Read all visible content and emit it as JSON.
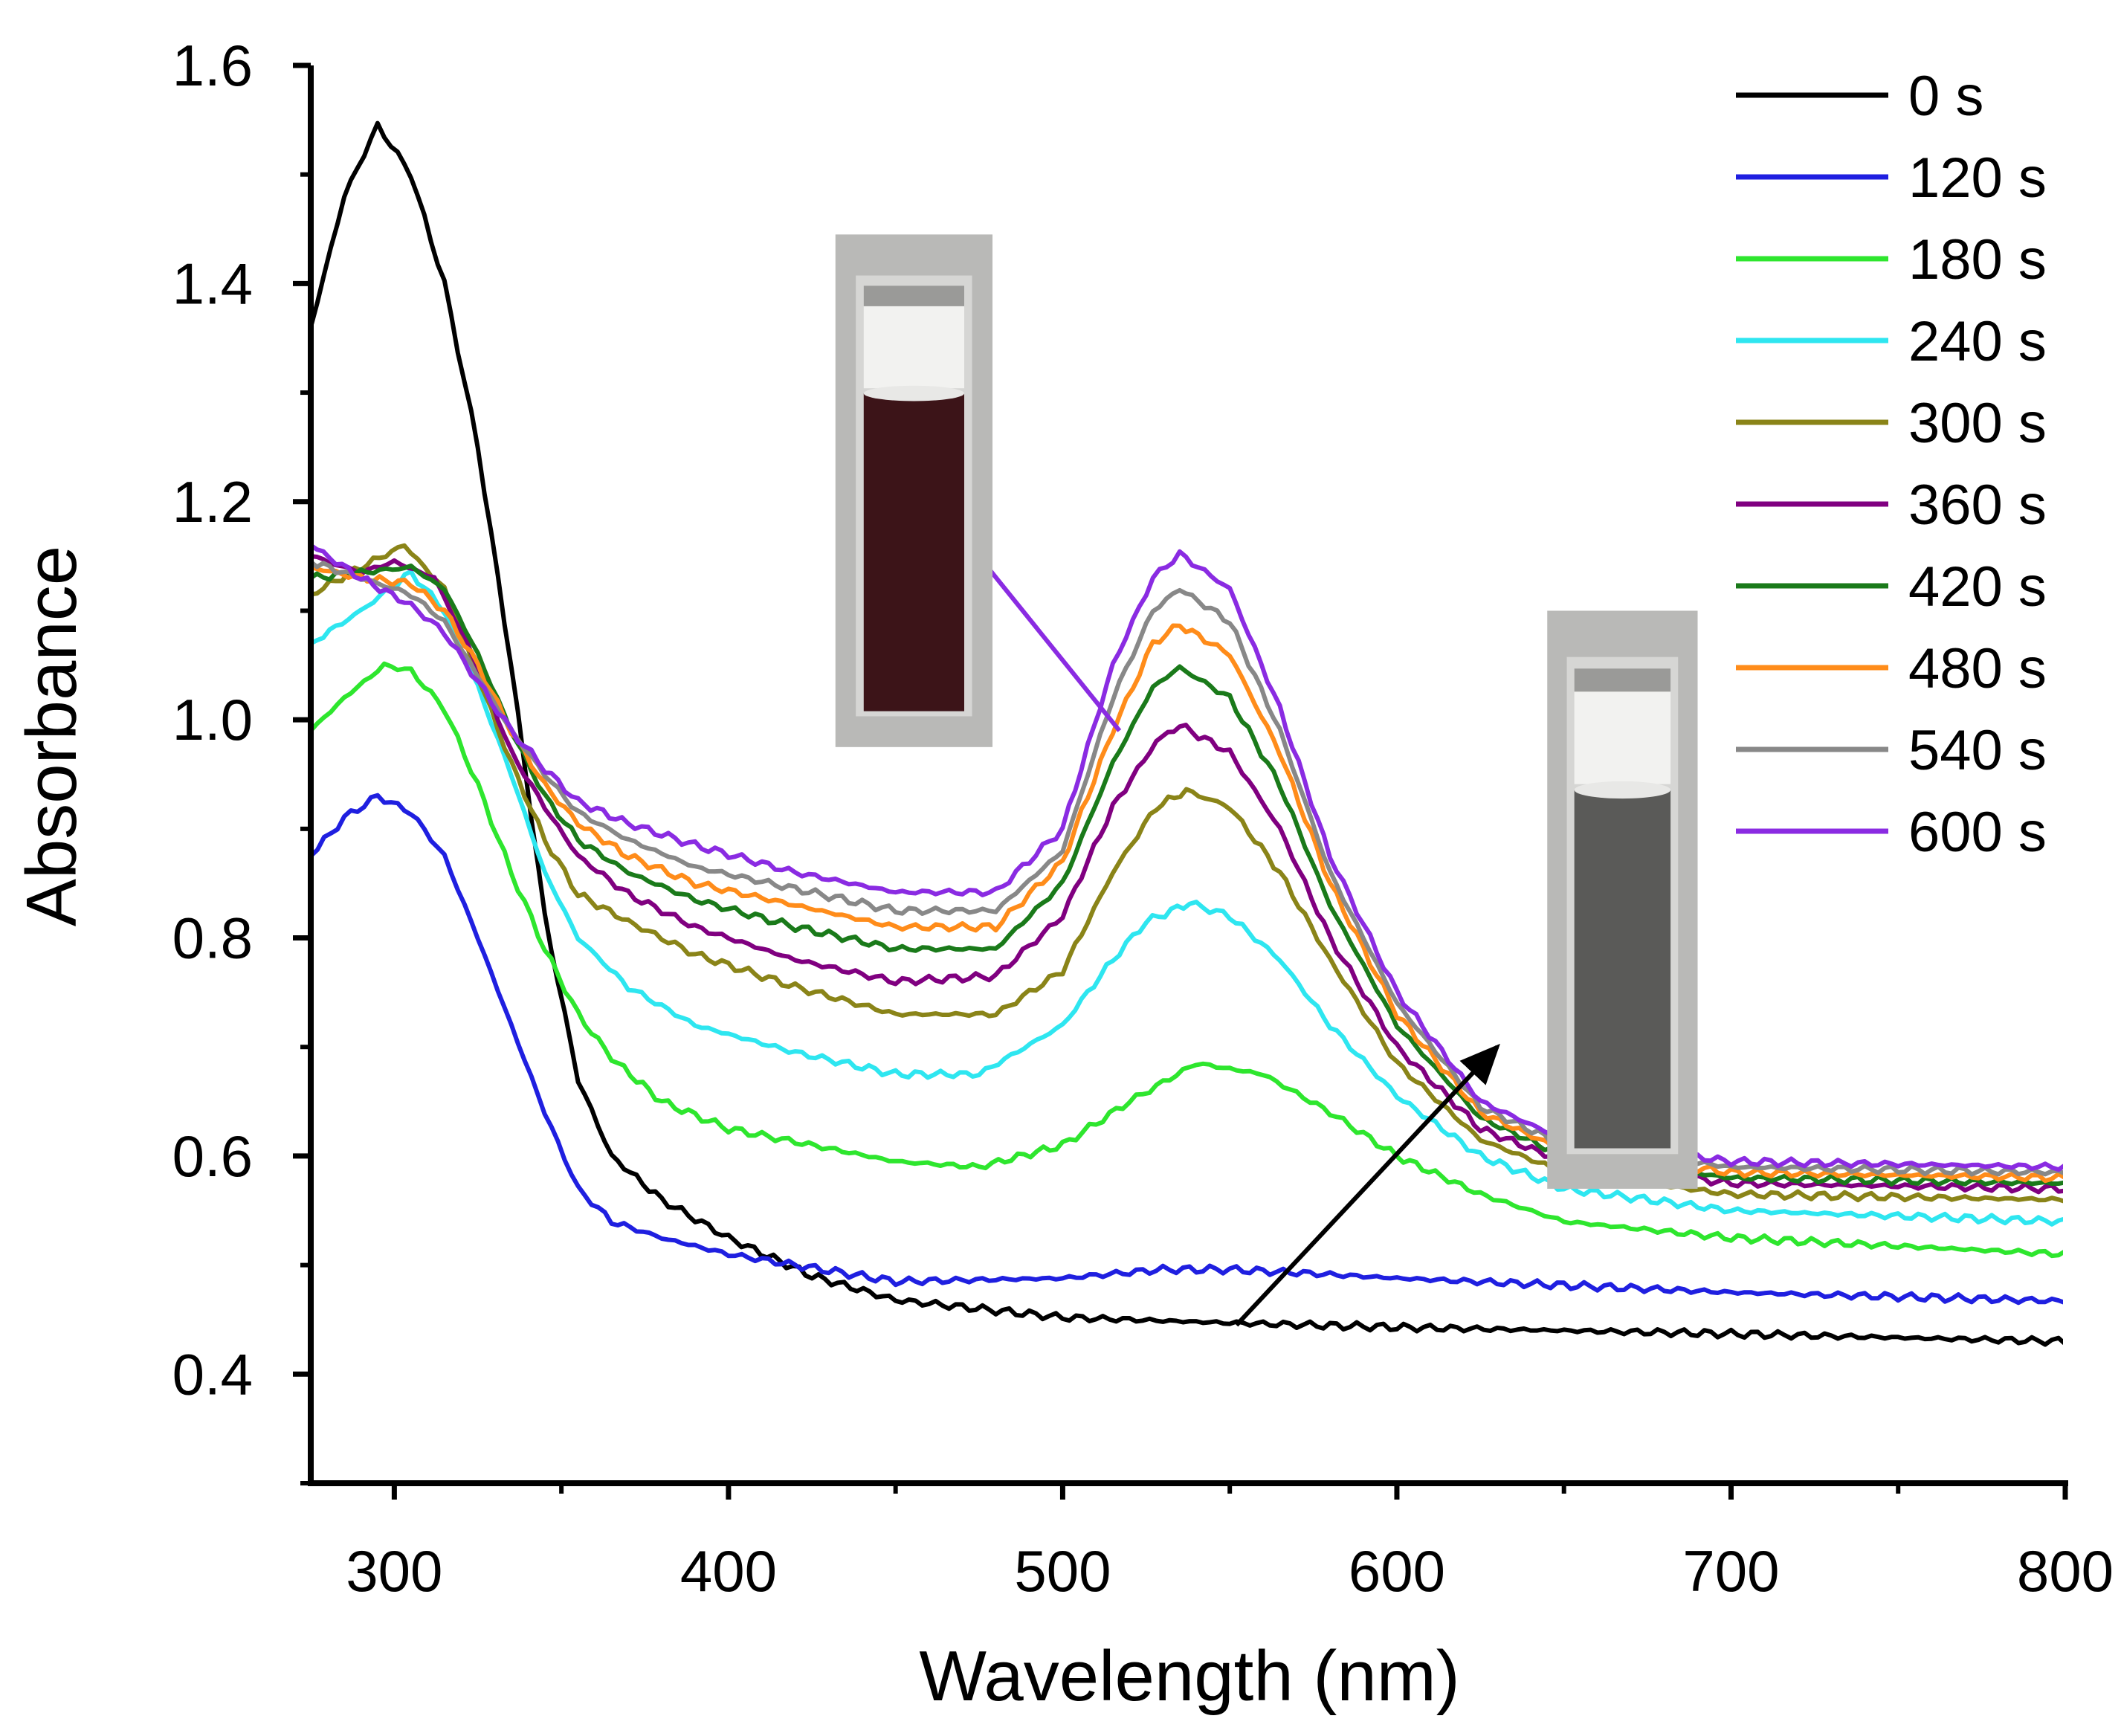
{
  "chart_data": {
    "type": "line",
    "xlabel": "Wavelength (nm)",
    "ylabel": "Absorbance",
    "xlim": [
      275,
      800
    ],
    "ylim": [
      0.3,
      1.6
    ],
    "x_ticks": [
      300,
      400,
      500,
      600,
      700,
      800
    ],
    "x_tick_labels": [
      "300",
      "400",
      "500",
      "600",
      "700",
      "800"
    ],
    "y_ticks": [
      0.4,
      0.6,
      0.8,
      1.0,
      1.2,
      1.4,
      1.6
    ],
    "y_tick_labels": [
      "0.4",
      "0.6",
      "0.8",
      "1.0",
      "1.2",
      "1.4",
      "1.6"
    ],
    "x_minor_ticks": [
      350,
      450,
      550,
      650,
      750
    ],
    "y_minor_ticks": [
      0.3,
      0.5,
      0.7,
      0.9,
      1.1,
      1.3,
      1.5
    ],
    "legend_position": "top-right",
    "series": [
      {
        "name": "0 s",
        "color": "#000000",
        "points": [
          [
            275,
            1.36
          ],
          [
            285,
            1.48
          ],
          [
            295,
            1.545
          ],
          [
            305,
            1.5
          ],
          [
            315,
            1.4
          ],
          [
            325,
            1.25
          ],
          [
            335,
            1.05
          ],
          [
            345,
            0.82
          ],
          [
            355,
            0.67
          ],
          [
            365,
            0.6
          ],
          [
            380,
            0.56
          ],
          [
            400,
            0.525
          ],
          [
            425,
            0.49
          ],
          [
            450,
            0.468
          ],
          [
            500,
            0.452
          ],
          [
            550,
            0.447
          ],
          [
            600,
            0.443
          ],
          [
            700,
            0.437
          ],
          [
            800,
            0.43
          ]
        ]
      },
      {
        "name": "120 s",
        "color": "#1f1fe0",
        "points": [
          [
            275,
            0.875
          ],
          [
            285,
            0.91
          ],
          [
            295,
            0.93
          ],
          [
            305,
            0.915
          ],
          [
            315,
            0.875
          ],
          [
            325,
            0.8
          ],
          [
            335,
            0.72
          ],
          [
            345,
            0.64
          ],
          [
            355,
            0.57
          ],
          [
            365,
            0.54
          ],
          [
            380,
            0.525
          ],
          [
            400,
            0.51
          ],
          [
            450,
            0.485
          ],
          [
            500,
            0.488
          ],
          [
            530,
            0.496
          ],
          [
            550,
            0.496
          ],
          [
            570,
            0.493
          ],
          [
            600,
            0.488
          ],
          [
            700,
            0.475
          ],
          [
            800,
            0.467
          ]
        ]
      },
      {
        "name": "180 s",
        "color": "#2ee62e",
        "points": [
          [
            275,
            0.99
          ],
          [
            285,
            1.02
          ],
          [
            297,
            1.05
          ],
          [
            305,
            1.045
          ],
          [
            315,
            1.01
          ],
          [
            325,
            0.94
          ],
          [
            335,
            0.86
          ],
          [
            345,
            0.79
          ],
          [
            355,
            0.73
          ],
          [
            365,
            0.69
          ],
          [
            380,
            0.65
          ],
          [
            400,
            0.625
          ],
          [
            450,
            0.595
          ],
          [
            475,
            0.59
          ],
          [
            500,
            0.61
          ],
          [
            520,
            0.65
          ],
          [
            540,
            0.685
          ],
          [
            560,
            0.675
          ],
          [
            580,
            0.64
          ],
          [
            600,
            0.6
          ],
          [
            625,
            0.565
          ],
          [
            650,
            0.54
          ],
          [
            700,
            0.525
          ],
          [
            800,
            0.51
          ]
        ]
      },
      {
        "name": "240 s",
        "color": "#2ee6f0",
        "points": [
          [
            275,
            1.07
          ],
          [
            290,
            1.1
          ],
          [
            305,
            1.135
          ],
          [
            315,
            1.1
          ],
          [
            325,
            1.03
          ],
          [
            335,
            0.95
          ],
          [
            345,
            0.86
          ],
          [
            355,
            0.8
          ],
          [
            370,
            0.755
          ],
          [
            390,
            0.72
          ],
          [
            420,
            0.695
          ],
          [
            450,
            0.675
          ],
          [
            475,
            0.675
          ],
          [
            500,
            0.72
          ],
          [
            515,
            0.78
          ],
          [
            525,
            0.815
          ],
          [
            538,
            0.832
          ],
          [
            550,
            0.82
          ],
          [
            565,
            0.78
          ],
          [
            580,
            0.72
          ],
          [
            600,
            0.655
          ],
          [
            625,
            0.6
          ],
          [
            650,
            0.57
          ],
          [
            700,
            0.55
          ],
          [
            800,
            0.54
          ]
        ]
      },
      {
        "name": "300 s",
        "color": "#8a8418",
        "points": [
          [
            275,
            1.115
          ],
          [
            290,
            1.14
          ],
          [
            303,
            1.16
          ],
          [
            315,
            1.12
          ],
          [
            325,
            1.04
          ],
          [
            335,
            0.96
          ],
          [
            345,
            0.89
          ],
          [
            355,
            0.84
          ],
          [
            370,
            0.815
          ],
          [
            390,
            0.785
          ],
          [
            420,
            0.755
          ],
          [
            450,
            0.73
          ],
          [
            480,
            0.73
          ],
          [
            500,
            0.77
          ],
          [
            515,
            0.86
          ],
          [
            528,
            0.92
          ],
          [
            537,
            0.935
          ],
          [
            550,
            0.92
          ],
          [
            565,
            0.86
          ],
          [
            580,
            0.78
          ],
          [
            600,
            0.685
          ],
          [
            625,
            0.615
          ],
          [
            650,
            0.585
          ],
          [
            700,
            0.565
          ],
          [
            800,
            0.56
          ]
        ]
      },
      {
        "name": "360 s",
        "color": "#800080",
        "points": [
          [
            275,
            1.15
          ],
          [
            290,
            1.135
          ],
          [
            300,
            1.145
          ],
          [
            312,
            1.13
          ],
          [
            325,
            1.05
          ],
          [
            335,
            0.97
          ],
          [
            345,
            0.92
          ],
          [
            355,
            0.875
          ],
          [
            370,
            0.84
          ],
          [
            390,
            0.81
          ],
          [
            420,
            0.78
          ],
          [
            450,
            0.76
          ],
          [
            480,
            0.765
          ],
          [
            500,
            0.82
          ],
          [
            515,
            0.92
          ],
          [
            528,
            0.98
          ],
          [
            535,
            0.995
          ],
          [
            550,
            0.97
          ],
          [
            565,
            0.9
          ],
          [
            580,
            0.8
          ],
          [
            600,
            0.7
          ],
          [
            625,
            0.625
          ],
          [
            650,
            0.595
          ],
          [
            700,
            0.575
          ],
          [
            800,
            0.57
          ]
        ]
      },
      {
        "name": "420 s",
        "color": "#1a7a1a",
        "points": [
          [
            275,
            1.13
          ],
          [
            290,
            1.135
          ],
          [
            305,
            1.14
          ],
          [
            315,
            1.12
          ],
          [
            325,
            1.06
          ],
          [
            335,
            0.99
          ],
          [
            345,
            0.93
          ],
          [
            355,
            0.89
          ],
          [
            370,
            0.86
          ],
          [
            390,
            0.835
          ],
          [
            420,
            0.81
          ],
          [
            450,
            0.79
          ],
          [
            480,
            0.79
          ],
          [
            500,
            0.85
          ],
          [
            515,
            0.96
          ],
          [
            527,
            1.03
          ],
          [
            535,
            1.048
          ],
          [
            550,
            1.02
          ],
          [
            565,
            0.94
          ],
          [
            580,
            0.83
          ],
          [
            600,
            0.72
          ],
          [
            625,
            0.635
          ],
          [
            650,
            0.6
          ],
          [
            700,
            0.58
          ],
          [
            800,
            0.575
          ]
        ]
      },
      {
        "name": "480 s",
        "color": "#ff8c1a",
        "points": [
          [
            275,
            1.14
          ],
          [
            290,
            1.13
          ],
          [
            305,
            1.125
          ],
          [
            315,
            1.1
          ],
          [
            325,
            1.05
          ],
          [
            335,
            0.99
          ],
          [
            345,
            0.94
          ],
          [
            355,
            0.905
          ],
          [
            370,
            0.875
          ],
          [
            390,
            0.85
          ],
          [
            420,
            0.83
          ],
          [
            450,
            0.81
          ],
          [
            480,
            0.81
          ],
          [
            500,
            0.87
          ],
          [
            515,
            0.99
          ],
          [
            527,
            1.07
          ],
          [
            535,
            1.087
          ],
          [
            550,
            1.06
          ],
          [
            565,
            0.97
          ],
          [
            580,
            0.85
          ],
          [
            600,
            0.73
          ],
          [
            625,
            0.64
          ],
          [
            650,
            0.605
          ],
          [
            700,
            0.585
          ],
          [
            800,
            0.58
          ]
        ]
      },
      {
        "name": "540 s",
        "color": "#888888",
        "points": [
          [
            275,
            1.145
          ],
          [
            290,
            1.13
          ],
          [
            305,
            1.115
          ],
          [
            315,
            1.09
          ],
          [
            325,
            1.04
          ],
          [
            335,
            0.99
          ],
          [
            345,
            0.95
          ],
          [
            355,
            0.915
          ],
          [
            370,
            0.89
          ],
          [
            390,
            0.865
          ],
          [
            420,
            0.845
          ],
          [
            450,
            0.825
          ],
          [
            480,
            0.825
          ],
          [
            500,
            0.88
          ],
          [
            515,
            1.02
          ],
          [
            527,
            1.1
          ],
          [
            535,
            1.12
          ],
          [
            550,
            1.09
          ],
          [
            565,
            0.99
          ],
          [
            580,
            0.86
          ],
          [
            600,
            0.74
          ],
          [
            625,
            0.645
          ],
          [
            650,
            0.61
          ],
          [
            700,
            0.59
          ],
          [
            800,
            0.585
          ]
        ]
      },
      {
        "name": "600 s",
        "color": "#8a2be2",
        "points": [
          [
            275,
            1.16
          ],
          [
            290,
            1.13
          ],
          [
            305,
            1.105
          ],
          [
            315,
            1.08
          ],
          [
            325,
            1.035
          ],
          [
            335,
            0.99
          ],
          [
            345,
            0.955
          ],
          [
            355,
            0.925
          ],
          [
            370,
            0.905
          ],
          [
            390,
            0.885
          ],
          [
            420,
            0.86
          ],
          [
            450,
            0.842
          ],
          [
            480,
            0.842
          ],
          [
            500,
            0.9
          ],
          [
            515,
            1.05
          ],
          [
            527,
            1.13
          ],
          [
            535,
            1.152
          ],
          [
            550,
            1.12
          ],
          [
            565,
            1.01
          ],
          [
            580,
            0.875
          ],
          [
            600,
            0.75
          ],
          [
            625,
            0.65
          ],
          [
            650,
            0.615
          ],
          [
            700,
            0.595
          ],
          [
            800,
            0.59
          ]
        ]
      }
    ],
    "annotations": [
      {
        "type": "arrow",
        "color": "#000000",
        "from": [
          552,
          0.445
        ],
        "to": [
          630,
          0.7
        ]
      },
      {
        "type": "arrow",
        "color": "#8a2be2",
        "from": [
          517,
          0.99
        ],
        "to": [
          467,
          1.18
        ]
      }
    ],
    "inset_photos": [
      {
        "name": "dark-red-cuvette",
        "liquid_color": "#3c1418",
        "anchor_x": [
          432,
          479
        ],
        "anchor_y": [
          0.975,
          1.445
        ]
      },
      {
        "name": "grey-cuvette",
        "liquid_color": "#5a5a58",
        "anchor_x": [
          645,
          690
        ],
        "anchor_y": [
          0.57,
          1.1
        ]
      }
    ]
  }
}
